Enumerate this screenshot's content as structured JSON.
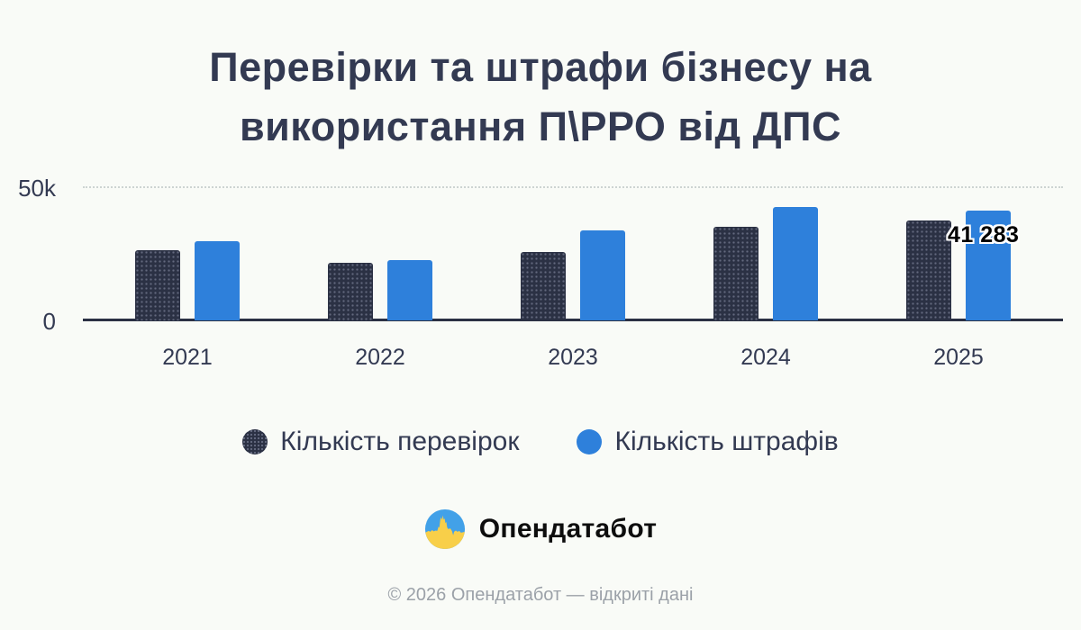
{
  "title": {
    "full": "Перевірки та штрафи бізнесу на використання П\\РРО від ДПС",
    "lines": [
      "Перевірки та штрафи бізнесу на",
      "використання П\\РРО від ДПС"
    ]
  },
  "chart_data": {
    "type": "bar",
    "title": "Перевірки та штрафи бізнесу на використання П\\РРО від ДПС",
    "categories": [
      "2021",
      "2022",
      "2023",
      "2024",
      "2025"
    ],
    "series": [
      {
        "key": "inspections",
        "name": "Кількість перевірок",
        "color": "#2b3144",
        "values": [
          26400,
          21700,
          25600,
          35200,
          37400
        ]
      },
      {
        "key": "fines",
        "name": "Кількість штрафів",
        "color": "#2e80db",
        "values": [
          29600,
          22500,
          33900,
          42700,
          41283
        ]
      }
    ],
    "xlabel": "",
    "ylabel": "",
    "ylim": [
      0,
      50000
    ],
    "yticks": [
      {
        "value": 0,
        "label": "0"
      },
      {
        "value": 50000,
        "label": "50k"
      }
    ],
    "grid": "single dotted horizontal line at 50k",
    "legend_position": "bottom-center",
    "annotation": {
      "text": "41 283",
      "series_key": "fines",
      "category": "2025"
    }
  },
  "branding": {
    "logo_text": "Опендатабот",
    "logo_icon": "opendatabot-pulse-circle"
  },
  "footer": {
    "text": "© 2026 Опендатабот — відкриті дані"
  },
  "colors": {
    "background": "#f9fbf7",
    "text": "#333a52",
    "axis": "#2b3144",
    "grid": "#cdd4d2",
    "muted": "#9ba1a8",
    "annotation_text": "#000000",
    "brand_text": "#0d0d0d",
    "logo_blue": "#42a1e8",
    "logo_yellow": "#f8cf49"
  }
}
